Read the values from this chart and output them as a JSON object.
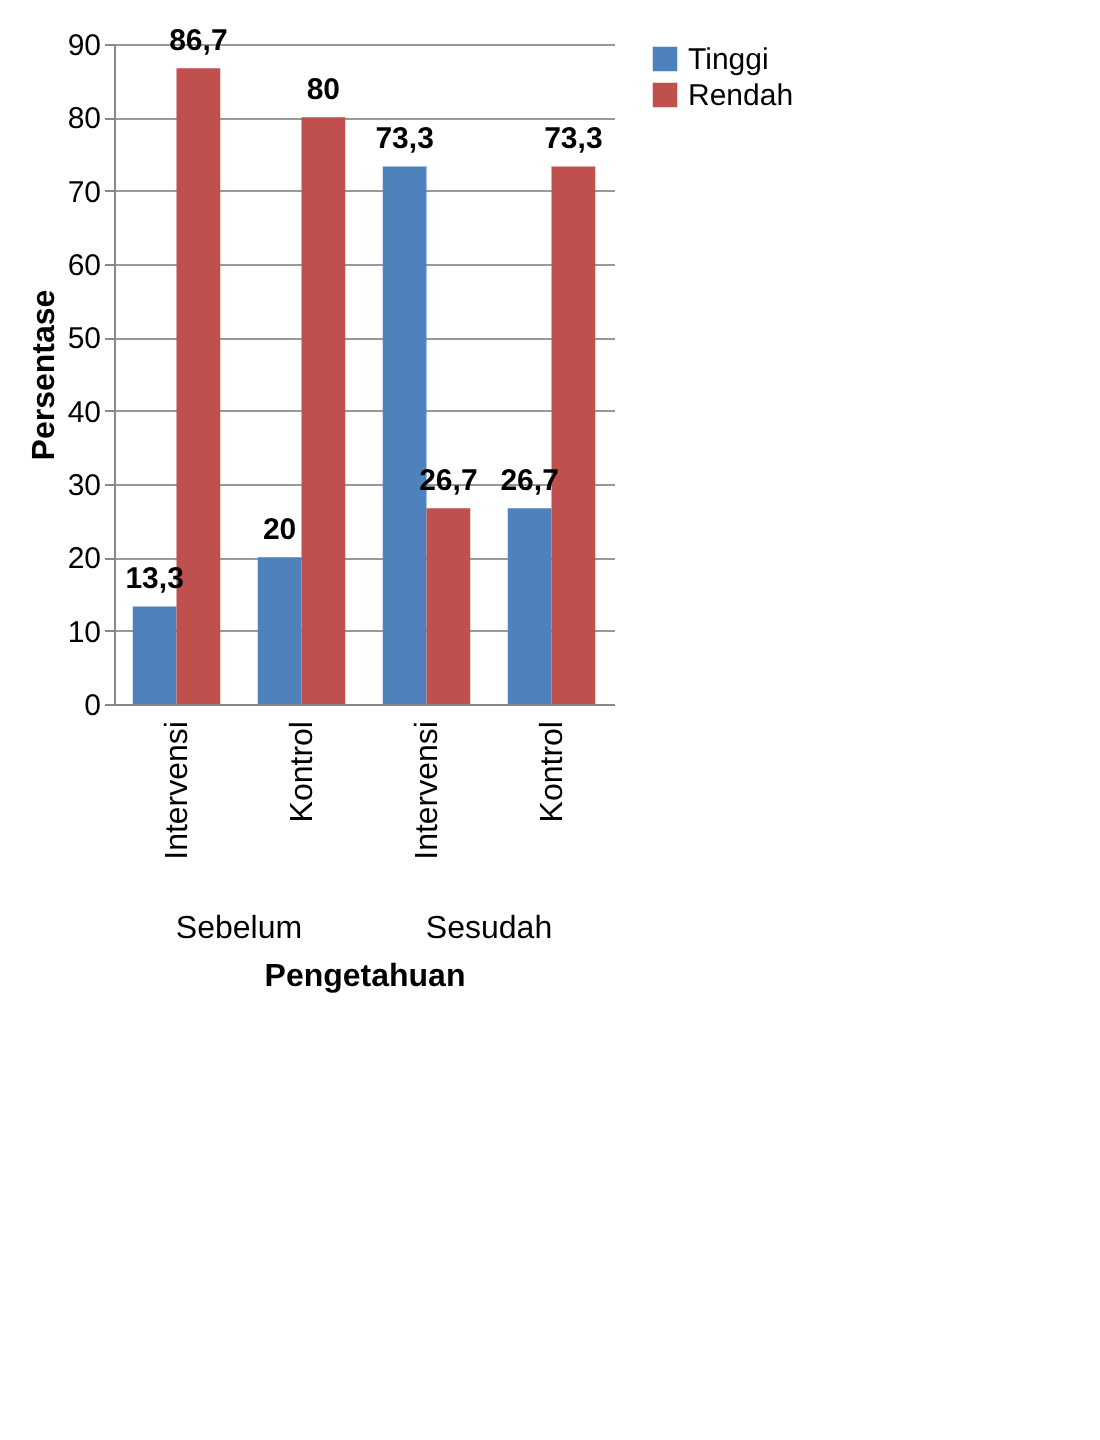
{
  "chart_data": {
    "type": "bar",
    "xlabel": "Pengetahuan",
    "ylabel": "Persentase",
    "categories": [
      "Intervensi",
      "Kontrol",
      "Intervensi",
      "Kontrol"
    ],
    "annotations": [
      "Sebelum",
      "Sesudah"
    ],
    "series": [
      {
        "name": "Tinggi",
        "color": "#4f81bd",
        "values": [
          13.3,
          20,
          73.3,
          26.7
        ],
        "value_labels": [
          "13,3",
          "20",
          "73,3",
          "26,7"
        ]
      },
      {
        "name": "Rendah",
        "color": "#c0504d",
        "values": [
          86.7,
          80,
          26.7,
          73.3
        ],
        "value_labels": [
          "86,7",
          "80",
          "26,7",
          "73,3"
        ]
      }
    ],
    "ylim": [
      0,
      90
    ],
    "yticks": [
      0,
      10,
      20,
      30,
      40,
      50,
      60,
      70,
      80,
      90
    ],
    "grid": "y",
    "legend": "right"
  }
}
